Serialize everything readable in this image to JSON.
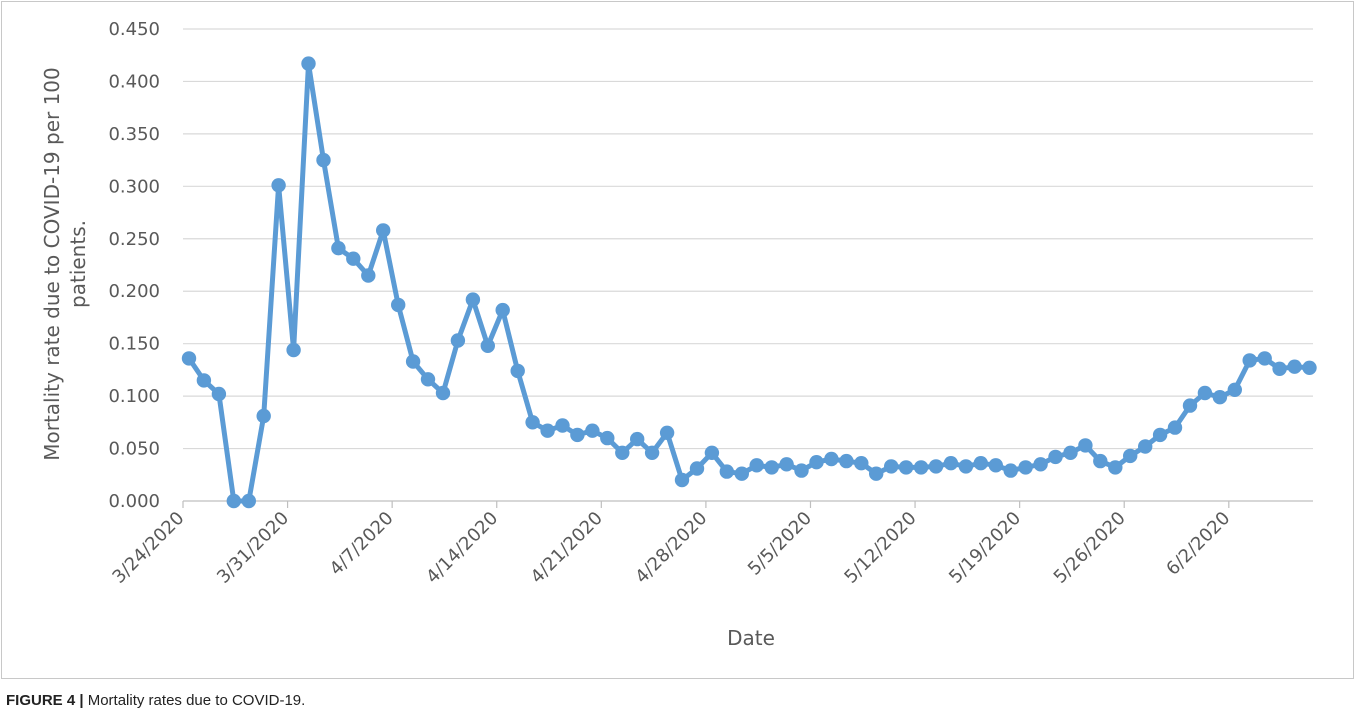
{
  "figure": {
    "caption_label": "FIGURE 4 |",
    "caption_text": "Mortality rates due to COVID-19."
  },
  "chart_data": {
    "type": "line",
    "title": "",
    "xlabel": "Date",
    "ylabel_lines": [
      "Mortality rate due to COVID-19 per 100",
      "patients."
    ],
    "ylim": [
      0,
      0.45
    ],
    "yticks": [
      "0.000",
      "0.050",
      "0.100",
      "0.150",
      "0.200",
      "0.250",
      "0.300",
      "0.350",
      "0.400",
      "0.450"
    ],
    "xticks": [
      "3/24/2020",
      "3/31/2020",
      "4/7/2020",
      "4/14/2020",
      "4/21/2020",
      "4/28/2020",
      "5/5/2020",
      "5/12/2020",
      "5/19/2020",
      "5/26/2020",
      "6/2/2020"
    ],
    "grid": true,
    "legend": "none",
    "series_color": "#5b9bd5",
    "series": [
      {
        "x": [
          "3/24/2020",
          "3/25/2020",
          "3/26/2020",
          "3/27/2020",
          "3/28/2020",
          "3/29/2020",
          "3/30/2020",
          "3/31/2020",
          "4/1/2020",
          "4/2/2020",
          "4/3/2020",
          "4/4/2020",
          "4/5/2020",
          "4/6/2020",
          "4/7/2020",
          "4/8/2020",
          "4/9/2020",
          "4/10/2020",
          "4/11/2020",
          "4/12/2020",
          "4/13/2020",
          "4/14/2020",
          "4/15/2020",
          "4/16/2020",
          "4/17/2020",
          "4/18/2020",
          "4/19/2020",
          "4/20/2020",
          "4/21/2020",
          "4/22/2020",
          "4/23/2020",
          "4/24/2020",
          "4/25/2020",
          "4/26/2020",
          "4/27/2020",
          "4/28/2020",
          "4/29/2020",
          "4/30/2020",
          "5/1/2020",
          "5/2/2020",
          "5/3/2020",
          "5/4/2020",
          "5/5/2020",
          "5/6/2020",
          "5/7/2020",
          "5/8/2020",
          "5/9/2020",
          "5/10/2020",
          "5/11/2020",
          "5/12/2020",
          "5/13/2020",
          "5/14/2020",
          "5/15/2020",
          "5/16/2020",
          "5/17/2020",
          "5/18/2020",
          "5/19/2020",
          "5/20/2020",
          "5/21/2020",
          "5/22/2020",
          "5/23/2020",
          "5/24/2020",
          "5/25/2020",
          "5/26/2020",
          "5/27/2020",
          "5/28/2020",
          "5/29/2020",
          "5/30/2020",
          "5/31/2020",
          "6/1/2020",
          "6/2/2020",
          "6/3/2020",
          "6/4/2020",
          "6/5/2020",
          "6/6/2020",
          "6/7/2020"
        ],
        "y": [
          0.136,
          0.115,
          0.102,
          0.0,
          0.0,
          0.081,
          0.301,
          0.144,
          0.417,
          0.325,
          0.241,
          0.231,
          0.215,
          0.258,
          0.187,
          0.133,
          0.116,
          0.103,
          0.153,
          0.192,
          0.148,
          0.182,
          0.124,
          0.075,
          0.067,
          0.072,
          0.063,
          0.067,
          0.06,
          0.046,
          0.059,
          0.046,
          0.065,
          0.02,
          0.031,
          0.046,
          0.028,
          0.026,
          0.034,
          0.032,
          0.035,
          0.029,
          0.037,
          0.04,
          0.038,
          0.036,
          0.026,
          0.033,
          0.032,
          0.032,
          0.033,
          0.036,
          0.033,
          0.036,
          0.034,
          0.029,
          0.032,
          0.035,
          0.042,
          0.046,
          0.053,
          0.038,
          0.032,
          0.043,
          0.052,
          0.063,
          0.07,
          0.091,
          0.103,
          0.099,
          0.106,
          0.134,
          0.136,
          0.126,
          0.128,
          0.127
        ]
      }
    ]
  }
}
